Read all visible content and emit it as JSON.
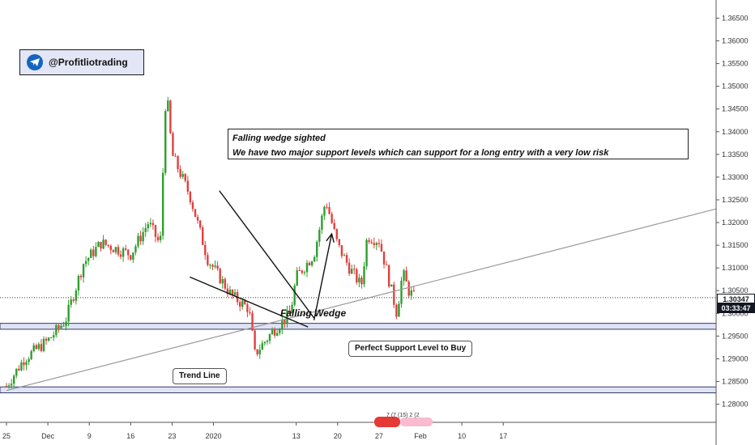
{
  "badge": {
    "handle": "@Profitliotrading",
    "icon": "telegram-icon",
    "accent": "#1565c0",
    "bg": "#e3e6f6"
  },
  "note": {
    "line1": "Falling wedge sighted",
    "line2": "We have two major support levels which can support for a long entry with a very low risk"
  },
  "annotations": {
    "wedge": "Falling Wedge",
    "support_callout": "Perfect Support Level to Buy",
    "trend_callout": "Trend Line"
  },
  "price_tag": {
    "price": "1.30347",
    "countdown": "03:33:47"
  },
  "mini_legend": "7 (7 (15) 2 (2",
  "colors": {
    "up": "#26a69a",
    "down": "#ef5350",
    "green_candle": "#2e9e2e",
    "red_candle": "#e04040",
    "zone_fill": "#dfe3f5",
    "line": "#333333",
    "trend": "#999999"
  },
  "chart_data": {
    "type": "candlestick",
    "title": "",
    "y_axis": {
      "range": [
        1.276,
        1.369
      ],
      "ticks": [
        "1.36500",
        "1.36000",
        "1.35500",
        "1.35000",
        "1.34500",
        "1.34000",
        "1.33500",
        "1.33000",
        "1.32500",
        "1.32000",
        "1.31500",
        "1.31000",
        "1.30500",
        "1.30000",
        "1.29500",
        "1.29000",
        "1.28500",
        "1.28000"
      ]
    },
    "x_axis": {
      "ticks": [
        "25",
        "Dec",
        "9",
        "16",
        "23",
        "2020",
        "13",
        "20",
        "27",
        "Feb",
        "10",
        "17"
      ]
    },
    "current_price": 1.30347,
    "support_zones": [
      {
        "low": 1.2965,
        "high": 1.2978
      },
      {
        "low": 1.2825,
        "high": 1.2838
      }
    ],
    "trend_line": {
      "from": [
        "2019-11-25",
        1.283
      ],
      "to": [
        "2020-02-20",
        1.312
      ]
    },
    "wedge_upper": {
      "from": [
        "2019-12-31",
        1.327
      ],
      "to": [
        "2020-01-16",
        1.299
      ]
    },
    "wedge_lower": {
      "from": [
        "2019-12-26",
        1.308
      ],
      "to": [
        "2020-01-15",
        1.297
      ]
    },
    "projection": {
      "from": [
        "2020-01-16",
        1.2985
      ],
      "to": [
        "2020-01-19",
        1.3175
      ]
    },
    "anchors": [
      {
        "d": 0,
        "p": 1.284
      },
      {
        "d": 3,
        "p": 1.29
      },
      {
        "d": 7,
        "p": 1.294
      },
      {
        "d": 10,
        "p": 1.2985
      },
      {
        "d": 13,
        "p": 1.311
      },
      {
        "d": 16,
        "p": 1.3155
      },
      {
        "d": 21,
        "p": 1.313
      },
      {
        "d": 24,
        "p": 1.32
      },
      {
        "d": 26,
        "p": 1.315
      },
      {
        "d": 27,
        "p": 1.35
      },
      {
        "d": 28,
        "p": 1.335
      },
      {
        "d": 31,
        "p": 1.326
      },
      {
        "d": 34,
        "p": 1.312
      },
      {
        "d": 38,
        "p": 1.304
      },
      {
        "d": 41,
        "p": 1.301
      },
      {
        "d": 42,
        "p": 1.291
      },
      {
        "d": 45,
        "p": 1.296
      },
      {
        "d": 48,
        "p": 1.3
      },
      {
        "d": 49,
        "p": 1.308
      },
      {
        "d": 52,
        "p": 1.313
      },
      {
        "d": 54,
        "p": 1.325
      },
      {
        "d": 56,
        "p": 1.315
      },
      {
        "d": 58,
        "p": 1.31
      },
      {
        "d": 60,
        "p": 1.306
      },
      {
        "d": 61,
        "p": 1.317
      },
      {
        "d": 63,
        "p": 1.316
      },
      {
        "d": 64,
        "p": 1.311
      },
      {
        "d": 66,
        "p": 1.3
      },
      {
        "d": 67,
        "p": 1.309
      },
      {
        "d": 68,
        "p": 1.305
      },
      {
        "d": 69,
        "p": 1.3035
      }
    ],
    "x_span_days": [
      0,
      126
    ],
    "date_origin": "2019-11-25"
  }
}
